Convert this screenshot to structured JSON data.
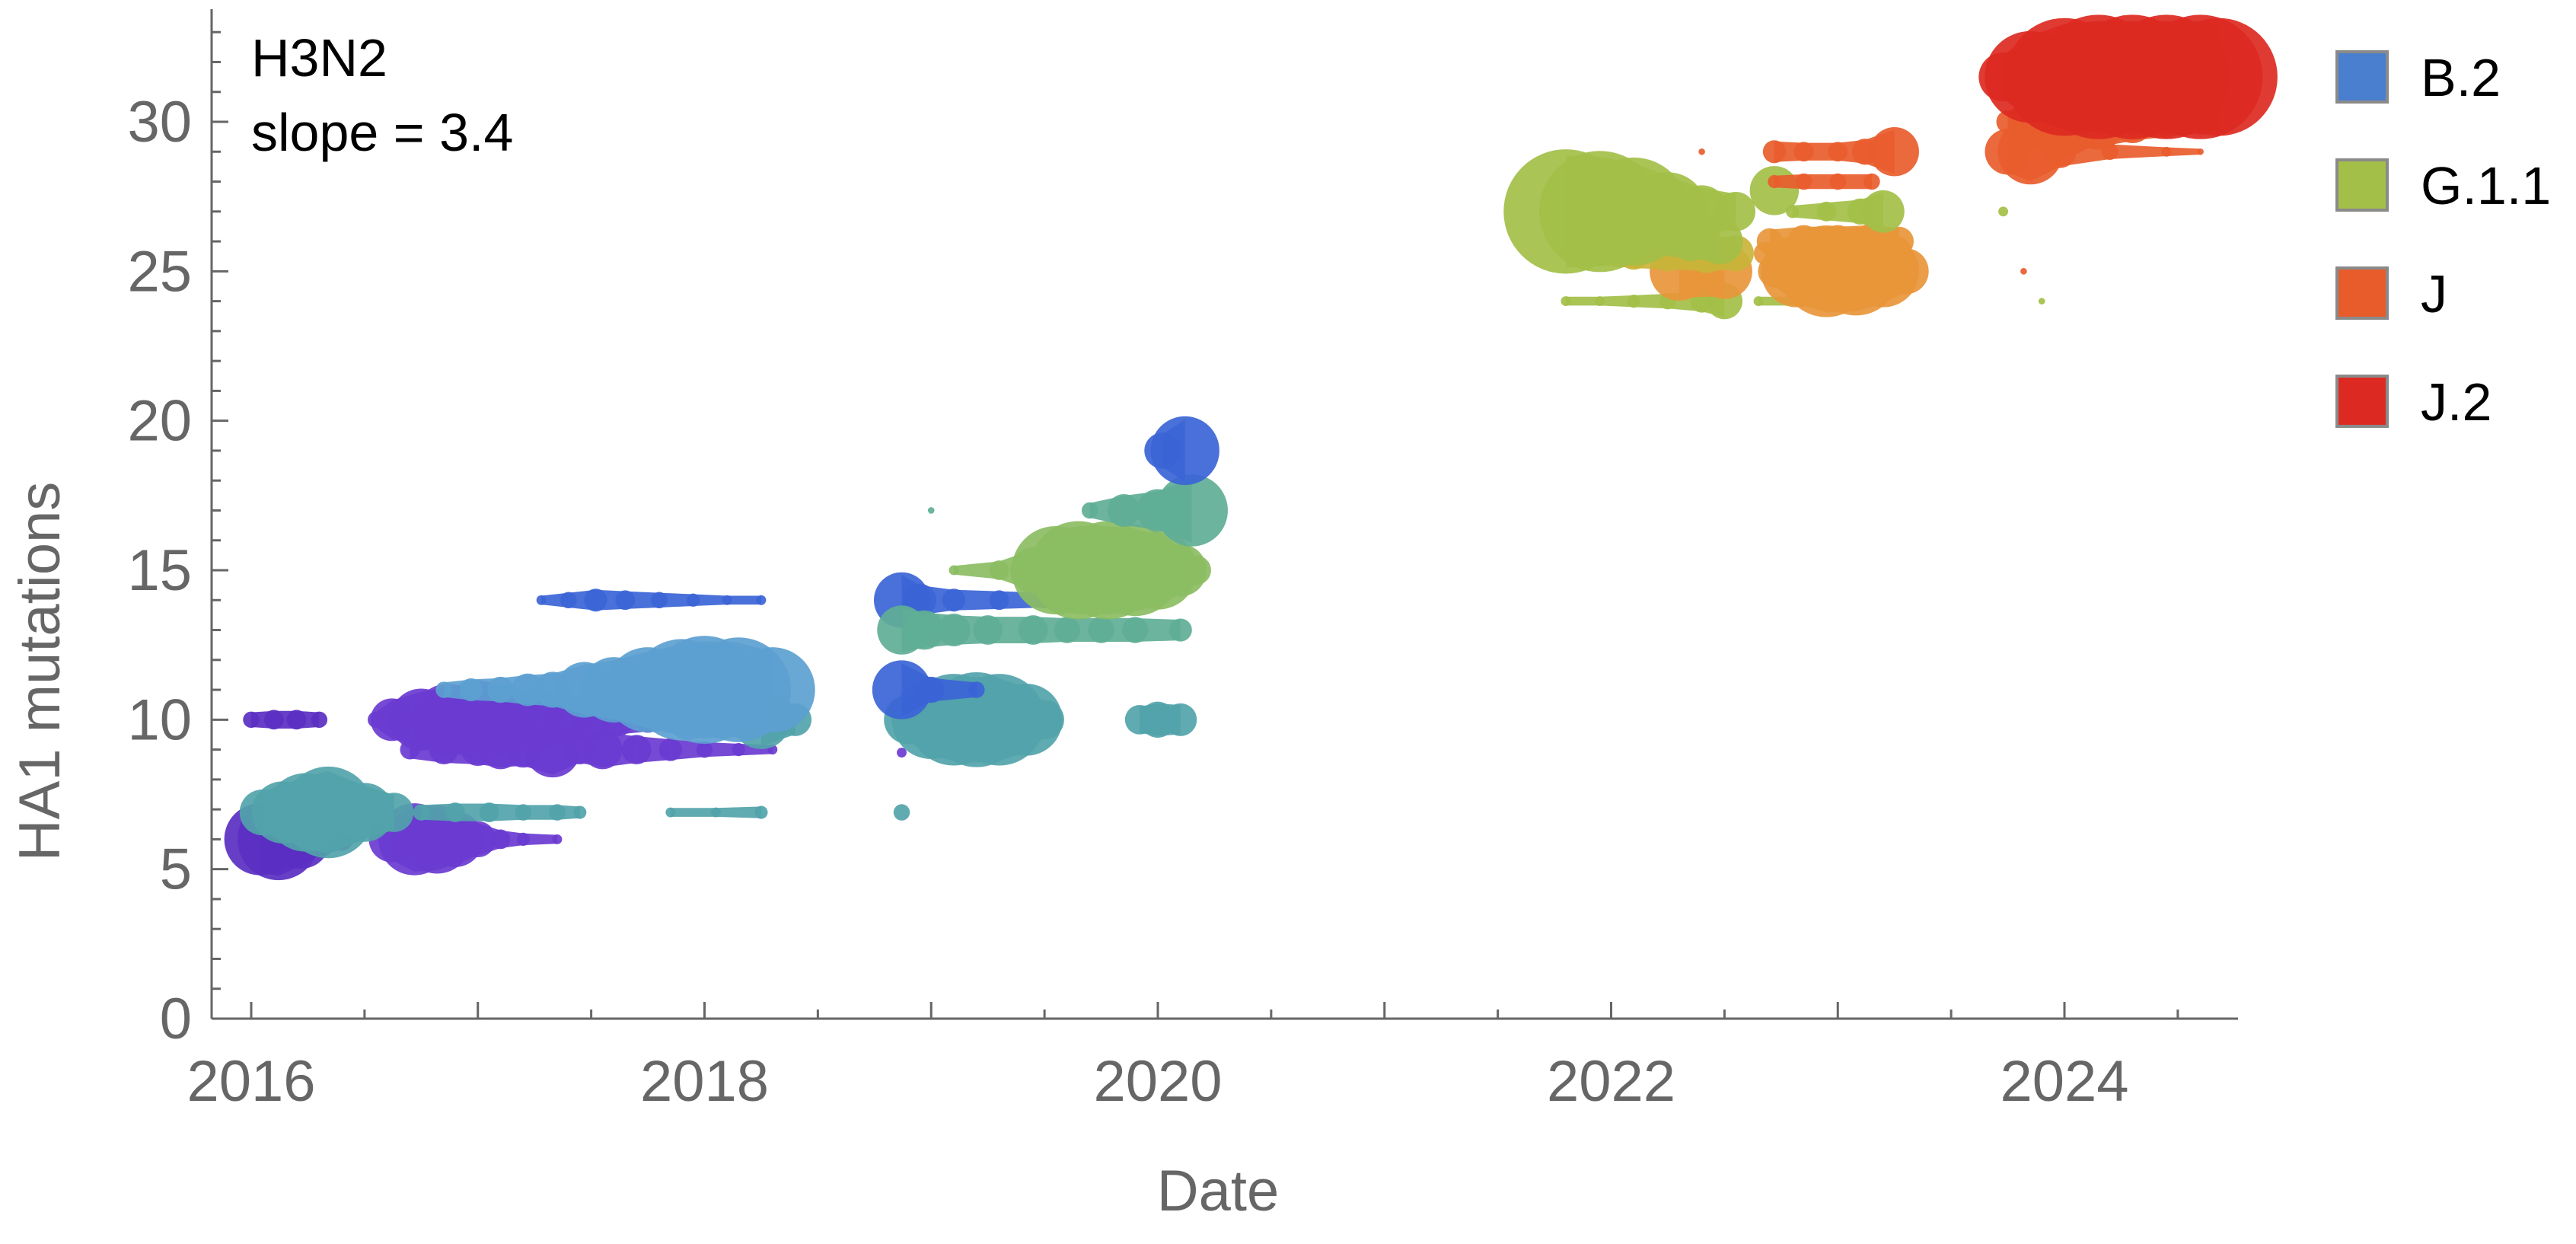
{
  "chart_data": {
    "type": "scatter",
    "xlabel": "Date",
    "ylabel": "HA1 mutations",
    "xlim": [
      2015.85,
      2024.8
    ],
    "ylim": [
      0,
      34
    ],
    "x_ticks": [
      2016,
      2018,
      2020,
      2022,
      2024
    ],
    "y_ticks": [
      0,
      5,
      10,
      15,
      20,
      25,
      30
    ],
    "annotations": [
      "H3N2",
      "slope = 3.4"
    ],
    "legend_position": "right",
    "legend": [
      {
        "name": "B.2",
        "color": "#4a7fd0"
      },
      {
        "name": "G.1.1",
        "color": "#a3bf48"
      },
      {
        "name": "J",
        "color": "#e85c2c"
      },
      {
        "name": "J.2",
        "color": "#dc2a22"
      }
    ],
    "colors": {
      "purple": "#5a2fc2",
      "violet": "#6a3bd0",
      "blue": "#4a7fd0",
      "royal": "#3b64d6",
      "sky": "#5c9fd0",
      "teal": "#52a3aa",
      "seafoam": "#5fae96",
      "green": "#8bbd62",
      "olive": "#a3bf48",
      "yellow": "#c9b43a",
      "orange": "#e8963a",
      "red_orange": "#e85c2c",
      "red": "#dc2a22"
    },
    "streams": [
      {
        "y": 6,
        "color": "purple",
        "points": [
          [
            2016.04,
            22
          ],
          [
            2016.12,
            25
          ],
          [
            2016.22,
            18
          ],
          [
            2016.3,
            11
          ],
          [
            2016.4,
            7
          ]
        ]
      },
      {
        "y": 6,
        "color": "violet",
        "points": [
          [
            2016.62,
            14
          ],
          [
            2016.72,
            22
          ],
          [
            2016.82,
            21
          ],
          [
            2016.9,
            17
          ],
          [
            2017.0,
            11
          ],
          [
            2017.1,
            6
          ],
          [
            2017.2,
            4
          ],
          [
            2017.35,
            3
          ]
        ]
      },
      {
        "y": 6.9,
        "color": "teal",
        "points": [
          [
            2016.05,
            14
          ],
          [
            2016.14,
            19
          ],
          [
            2016.24,
            24
          ],
          [
            2016.34,
            28
          ],
          [
            2016.5,
            18
          ],
          [
            2016.63,
            12
          ]
        ]
      },
      {
        "y": 6.9,
        "color": "teal",
        "points": [
          [
            2016.75,
            5
          ],
          [
            2016.9,
            6
          ],
          [
            2017.05,
            6
          ],
          [
            2017.2,
            5
          ],
          [
            2017.35,
            5
          ],
          [
            2017.45,
            4
          ]
        ]
      },
      {
        "y": 6.9,
        "color": "teal",
        "points": [
          [
            2017.85,
            3
          ],
          [
            2018.05,
            3
          ],
          [
            2018.25,
            4
          ]
        ]
      },
      {
        "y": 6.9,
        "color": "teal",
        "points": [
          [
            2018.87,
            5
          ]
        ]
      },
      {
        "y": 9,
        "color": "violet",
        "points": [
          [
            2016.7,
            6
          ],
          [
            2016.85,
            9
          ],
          [
            2017.0,
            10
          ],
          [
            2017.1,
            12
          ],
          [
            2017.2,
            11
          ],
          [
            2017.33,
            17
          ],
          [
            2017.45,
            9
          ],
          [
            2017.55,
            12
          ],
          [
            2017.7,
            9
          ],
          [
            2017.85,
            7
          ],
          [
            2018.0,
            5
          ],
          [
            2018.15,
            4
          ],
          [
            2018.3,
            3
          ]
        ]
      },
      {
        "y": 8.9,
        "color": "violet",
        "points": [
          [
            2018.87,
            3
          ]
        ]
      },
      {
        "y": 10,
        "color": "purple",
        "points": [
          [
            2016.0,
            5
          ],
          [
            2016.1,
            6
          ],
          [
            2016.2,
            6
          ],
          [
            2016.3,
            5
          ]
        ]
      },
      {
        "y": 10,
        "color": "violet",
        "points": [
          [
            2016.55,
            5
          ],
          [
            2016.62,
            13
          ],
          [
            2016.75,
            19
          ],
          [
            2016.87,
            22
          ],
          [
            2017.0,
            24
          ],
          [
            2017.12,
            21
          ],
          [
            2017.25,
            19
          ],
          [
            2017.4,
            15
          ],
          [
            2017.5,
            12
          ],
          [
            2017.62,
            10
          ],
          [
            2017.75,
            8
          ],
          [
            2017.87,
            6
          ],
          [
            2017.97,
            5
          ]
        ]
      },
      {
        "y": 10,
        "color": "teal",
        "points": [
          [
            2018.25,
            18
          ],
          [
            2018.4,
            10
          ]
        ]
      },
      {
        "y": 10,
        "color": "teal",
        "points": [
          [
            2018.9,
            15
          ],
          [
            2019.0,
            24
          ],
          [
            2019.1,
            28
          ],
          [
            2019.2,
            29
          ],
          [
            2019.3,
            28
          ],
          [
            2019.42,
            22
          ],
          [
            2019.5,
            12
          ]
        ]
      },
      {
        "y": 10,
        "color": "teal",
        "points": [
          [
            2019.92,
            9
          ],
          [
            2020.0,
            11
          ],
          [
            2020.1,
            10
          ]
        ]
      },
      {
        "y": 11,
        "color": "sky",
        "points": [
          [
            2016.85,
            5
          ],
          [
            2016.97,
            7
          ],
          [
            2017.1,
            8
          ],
          [
            2017.22,
            10
          ],
          [
            2017.33,
            11
          ],
          [
            2017.47,
            17
          ],
          [
            2017.6,
            20
          ],
          [
            2017.75,
            26
          ],
          [
            2017.9,
            31
          ],
          [
            2018.0,
            33
          ],
          [
            2018.15,
            32
          ],
          [
            2018.3,
            26
          ]
        ]
      },
      {
        "y": 11,
        "color": "royal",
        "points": [
          [
            2018.87,
            18
          ],
          [
            2019.0,
            8
          ],
          [
            2019.2,
            5
          ]
        ]
      },
      {
        "y": 14,
        "color": "royal",
        "points": [
          [
            2017.28,
            3
          ],
          [
            2017.4,
            5
          ],
          [
            2017.52,
            7
          ],
          [
            2017.65,
            6
          ],
          [
            2017.8,
            5
          ],
          [
            2017.95,
            4
          ],
          [
            2018.1,
            3
          ],
          [
            2018.25,
            3
          ]
        ]
      },
      {
        "y": 14,
        "color": "royal",
        "points": [
          [
            2018.87,
            17
          ],
          [
            2018.95,
            10
          ],
          [
            2019.1,
            7
          ],
          [
            2019.3,
            6
          ],
          [
            2019.5,
            5
          ]
        ]
      },
      {
        "y": 13,
        "color": "seafoam",
        "points": [
          [
            2018.87,
            15
          ],
          [
            2018.97,
            12
          ],
          [
            2019.1,
            10
          ],
          [
            2019.25,
            9
          ],
          [
            2019.45,
            9
          ],
          [
            2019.6,
            8
          ],
          [
            2019.75,
            8
          ],
          [
            2019.9,
            8
          ],
          [
            2020.1,
            7
          ]
        ]
      },
      {
        "y": 15,
        "color": "green",
        "points": [
          [
            2019.1,
            3
          ],
          [
            2019.3,
            6
          ],
          [
            2019.45,
            14
          ],
          [
            2019.55,
            27
          ],
          [
            2019.65,
            30
          ],
          [
            2019.78,
            30
          ],
          [
            2019.9,
            28
          ],
          [
            2020.0,
            24
          ],
          [
            2020.1,
            16
          ],
          [
            2020.17,
            9
          ]
        ]
      },
      {
        "y": 17,
        "color": "seafoam",
        "points": [
          [
            2019.7,
            5
          ],
          [
            2019.85,
            10
          ],
          [
            2020.0,
            13
          ],
          [
            2020.15,
            22
          ]
        ]
      },
      {
        "y": 19,
        "color": "royal",
        "points": [
          [
            2020.02,
            11
          ],
          [
            2020.12,
            21
          ]
        ]
      },
      {
        "y": 24,
        "color": "olive",
        "points": [
          [
            2021.8,
            3
          ],
          [
            2021.95,
            3
          ],
          [
            2022.1,
            4
          ],
          [
            2022.25,
            5
          ],
          [
            2022.4,
            7
          ],
          [
            2022.5,
            11
          ]
        ]
      },
      {
        "y": 24,
        "color": "olive",
        "points": [
          [
            2022.65,
            3
          ],
          [
            2022.85,
            3
          ],
          [
            2023.0,
            3
          ]
        ]
      },
      {
        "y": 25,
        "color": "orange",
        "points": [
          [
            2022.3,
            18
          ],
          [
            2022.5,
            17
          ]
        ]
      },
      {
        "y": 25,
        "color": "orange",
        "points": [
          [
            2022.72,
            10
          ],
          [
            2022.82,
            22
          ],
          [
            2022.95,
            28
          ],
          [
            2023.08,
            27
          ],
          [
            2023.2,
            22
          ],
          [
            2023.3,
            14
          ]
        ]
      },
      {
        "y": 25.6,
        "color": "yellow",
        "points": [
          [
            2021.8,
            4
          ],
          [
            2021.95,
            8
          ],
          [
            2022.1,
            10
          ],
          [
            2022.25,
            11
          ],
          [
            2022.42,
            12
          ],
          [
            2022.55,
            11
          ]
        ]
      },
      {
        "y": 25.6,
        "color": "orange",
        "points": [
          [
            2022.68,
            7
          ],
          [
            2022.8,
            10
          ],
          [
            2022.95,
            12
          ],
          [
            2023.1,
            12
          ],
          [
            2023.25,
            11
          ]
        ]
      },
      {
        "y": 26,
        "color": "olive",
        "points": [
          [
            2022.2,
            9
          ],
          [
            2022.35,
            12
          ],
          [
            2022.48,
            14
          ]
        ]
      },
      {
        "y": 26,
        "color": "orange",
        "points": [
          [
            2022.7,
            8
          ],
          [
            2022.85,
            10
          ],
          [
            2023.0,
            10
          ],
          [
            2023.15,
            11
          ],
          [
            2023.27,
            9
          ]
        ]
      },
      {
        "y": 27,
        "color": "olive",
        "points": [
          [
            2021.8,
            38
          ],
          [
            2021.95,
            37
          ],
          [
            2022.1,
            33
          ],
          [
            2022.25,
            24
          ],
          [
            2022.4,
            16
          ],
          [
            2022.55,
            12
          ]
        ]
      },
      {
        "y": 27.7,
        "color": "olive",
        "points": [
          [
            2022.72,
            15
          ]
        ]
      },
      {
        "y": 27,
        "color": "olive",
        "points": [
          [
            2022.8,
            4
          ],
          [
            2022.95,
            6
          ],
          [
            2023.1,
            8
          ],
          [
            2023.2,
            13
          ]
        ]
      },
      {
        "y": 28,
        "color": "red_orange",
        "points": [
          [
            2022.72,
            4
          ],
          [
            2022.85,
            5
          ],
          [
            2023.0,
            5
          ],
          [
            2023.15,
            5
          ]
        ]
      },
      {
        "y": 29,
        "color": "red_orange",
        "points": [
          [
            2022.4,
            2
          ]
        ]
      },
      {
        "y": 29,
        "color": "red_orange",
        "points": [
          [
            2022.72,
            7
          ],
          [
            2022.85,
            6
          ],
          [
            2023.0,
            6
          ],
          [
            2023.12,
            8
          ],
          [
            2023.25,
            15
          ]
        ]
      },
      {
        "y": 29,
        "color": "red_orange",
        "points": [
          [
            2023.75,
            14
          ],
          [
            2023.85,
            20
          ],
          [
            2023.98,
            10
          ],
          [
            2024.2,
            5
          ],
          [
            2024.45,
            3
          ],
          [
            2024.6,
            2
          ]
        ]
      },
      {
        "y": 30,
        "color": "red_orange",
        "points": [
          [
            2023.75,
            7
          ],
          [
            2023.88,
            17
          ],
          [
            2024.0,
            21
          ],
          [
            2024.15,
            17
          ],
          [
            2024.3,
            13
          ],
          [
            2024.45,
            10
          ],
          [
            2024.6,
            8
          ]
        ]
      },
      {
        "y": 31.5,
        "color": "red",
        "points": [
          [
            2023.73,
            15
          ],
          [
            2023.85,
            28
          ],
          [
            2024.0,
            36
          ],
          [
            2024.15,
            38
          ],
          [
            2024.3,
            38
          ],
          [
            2024.45,
            38
          ],
          [
            2024.6,
            38
          ],
          [
            2024.68,
            36
          ]
        ]
      },
      {
        "y": 27,
        "color": "olive",
        "points": [
          [
            2023.73,
            3
          ]
        ]
      },
      {
        "y": 25,
        "color": "red_orange",
        "points": [
          [
            2023.82,
            2
          ]
        ]
      },
      {
        "y": 24,
        "color": "olive",
        "points": [
          [
            2023.9,
            2
          ]
        ]
      },
      {
        "y": 17,
        "color": "seafoam",
        "points": [
          [
            2019.0,
            2
          ]
        ]
      }
    ]
  }
}
